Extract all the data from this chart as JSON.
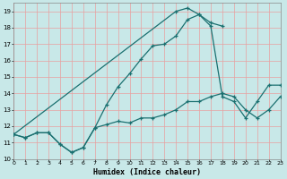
{
  "xlabel": "Humidex (Indice chaleur)",
  "background_color": "#c8e8e8",
  "line_color": "#1a7070",
  "grid_color": "#e8a0a0",
  "xlim": [
    0,
    23
  ],
  "ylim": [
    10,
    19.5
  ],
  "yticks": [
    10,
    11,
    12,
    13,
    14,
    15,
    16,
    17,
    18,
    19
  ],
  "xticks": [
    0,
    1,
    2,
    3,
    4,
    5,
    6,
    7,
    8,
    9,
    10,
    11,
    12,
    13,
    14,
    15,
    16,
    17,
    18,
    19,
    20,
    21,
    22,
    23
  ],
  "s1_x": [
    0,
    1,
    2,
    3,
    4,
    5,
    6,
    7,
    8,
    9,
    10,
    11,
    12,
    13,
    14,
    15,
    16,
    17,
    18,
    19,
    20,
    21,
    22,
    23
  ],
  "s1_y": [
    11.5,
    11.3,
    11.6,
    11.6,
    10.9,
    10.4,
    10.7,
    11.9,
    12.1,
    12.3,
    12.2,
    12.5,
    12.5,
    12.7,
    13.0,
    13.5,
    13.5,
    13.8,
    14.0,
    13.8,
    13.0,
    12.5,
    13.0,
    13.8
  ],
  "s2_x": [
    0,
    1,
    2,
    3,
    4,
    5,
    6,
    7,
    8,
    9,
    10,
    11,
    12,
    13,
    14,
    15,
    16,
    17,
    18
  ],
  "s2_y": [
    11.5,
    11.3,
    11.6,
    11.6,
    10.9,
    10.4,
    10.7,
    11.9,
    13.3,
    14.4,
    15.2,
    16.1,
    16.9,
    17.0,
    17.5,
    18.5,
    18.8,
    18.3,
    18.1
  ],
  "s3_x": [
    0,
    14,
    15,
    16,
    17,
    18,
    19,
    20,
    21,
    22,
    23
  ],
  "s3_y": [
    11.5,
    19.0,
    19.2,
    18.8,
    18.1,
    13.8,
    13.5,
    12.5,
    13.5,
    14.5,
    14.5
  ],
  "lw": 0.9,
  "ms": 3.5,
  "mew": 0.9
}
